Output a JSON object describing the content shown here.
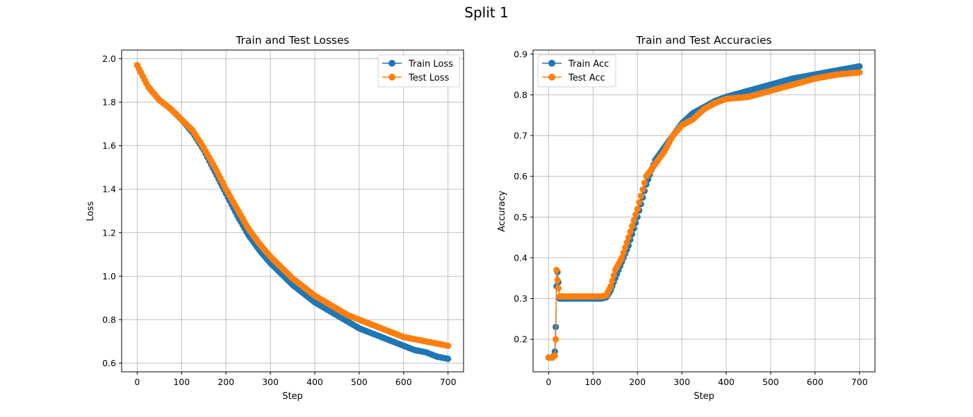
{
  "figure": {
    "title": "Split 1"
  },
  "colors": {
    "series0": "#1f77b4",
    "series1": "#ff7f0e",
    "grid": "#b0b0b0"
  },
  "chart_data": [
    {
      "type": "line",
      "title": "Train and Test Losses",
      "xlabel": "Step",
      "ylabel": "Loss",
      "xlim": [
        -35,
        735
      ],
      "ylim": [
        0.56,
        2.04
      ],
      "xticks": [
        0,
        100,
        200,
        300,
        400,
        500,
        600,
        700
      ],
      "yticks": [
        0.6,
        0.8,
        1.0,
        1.2,
        1.4,
        1.6,
        1.8,
        2.0
      ],
      "ytick_labels": [
        "0.6",
        "0.8",
        "1.0",
        "1.2",
        "1.4",
        "1.6",
        "1.8",
        "2.0"
      ],
      "grid": true,
      "legend_position": "top-right",
      "x": [
        0,
        25,
        50,
        75,
        100,
        125,
        150,
        175,
        200,
        225,
        250,
        275,
        300,
        325,
        350,
        375,
        400,
        425,
        450,
        475,
        500,
        525,
        550,
        575,
        600,
        625,
        650,
        675,
        700
      ],
      "series": [
        {
          "name": "Train Loss",
          "values": [
            1.97,
            1.87,
            1.81,
            1.77,
            1.72,
            1.66,
            1.58,
            1.48,
            1.38,
            1.28,
            1.19,
            1.12,
            1.06,
            1.01,
            0.96,
            0.92,
            0.88,
            0.85,
            0.82,
            0.79,
            0.76,
            0.74,
            0.72,
            0.7,
            0.68,
            0.66,
            0.65,
            0.63,
            0.62
          ]
        },
        {
          "name": "Test Loss",
          "values": [
            1.97,
            1.87,
            1.81,
            1.77,
            1.72,
            1.67,
            1.59,
            1.5,
            1.4,
            1.31,
            1.22,
            1.15,
            1.09,
            1.04,
            0.99,
            0.95,
            0.91,
            0.88,
            0.85,
            0.82,
            0.8,
            0.78,
            0.76,
            0.74,
            0.72,
            0.71,
            0.7,
            0.69,
            0.68
          ]
        }
      ]
    },
    {
      "type": "line",
      "title": "Train and Test Accuracies",
      "xlabel": "Step",
      "ylabel": "Accuracy",
      "xlim": [
        -35,
        735
      ],
      "ylim": [
        0.12,
        0.91
      ],
      "xticks": [
        0,
        100,
        200,
        300,
        400,
        500,
        600,
        700
      ],
      "yticks": [
        0.2,
        0.3,
        0.4,
        0.5,
        0.6,
        0.7,
        0.8,
        0.9
      ],
      "ytick_labels": [
        "0.2",
        "0.3",
        "0.4",
        "0.5",
        "0.6",
        "0.7",
        "0.8",
        "0.9"
      ],
      "grid": true,
      "legend_position": "top-left",
      "series": [
        {
          "name": "Train Acc",
          "x": [
            0,
            8,
            12,
            14,
            16,
            18,
            20,
            22,
            25,
            50,
            100,
            120,
            130,
            140,
            150,
            165,
            180,
            200,
            220,
            240,
            260,
            280,
            300,
            325,
            350,
            375,
            400,
            450,
            500,
            550,
            600,
            650,
            700
          ],
          "values": [
            0.155,
            0.155,
            0.16,
            0.17,
            0.23,
            0.33,
            0.365,
            0.34,
            0.3,
            0.3,
            0.3,
            0.3,
            0.303,
            0.32,
            0.35,
            0.39,
            0.43,
            0.5,
            0.58,
            0.64,
            0.67,
            0.7,
            0.73,
            0.755,
            0.77,
            0.785,
            0.795,
            0.81,
            0.825,
            0.84,
            0.85,
            0.86,
            0.87
          ]
        },
        {
          "name": "Test Acc",
          "x": [
            0,
            8,
            12,
            14,
            16,
            18,
            20,
            22,
            25,
            50,
            100,
            120,
            130,
            140,
            150,
            165,
            180,
            200,
            220,
            240,
            260,
            280,
            300,
            325,
            350,
            375,
            400,
            450,
            500,
            550,
            600,
            650,
            700
          ],
          "values": [
            0.155,
            0.155,
            0.158,
            0.16,
            0.2,
            0.37,
            0.345,
            0.325,
            0.305,
            0.305,
            0.305,
            0.305,
            0.308,
            0.33,
            0.37,
            0.4,
            0.45,
            0.52,
            0.6,
            0.63,
            0.66,
            0.7,
            0.725,
            0.74,
            0.765,
            0.78,
            0.79,
            0.795,
            0.81,
            0.825,
            0.84,
            0.85,
            0.855
          ]
        }
      ]
    }
  ]
}
